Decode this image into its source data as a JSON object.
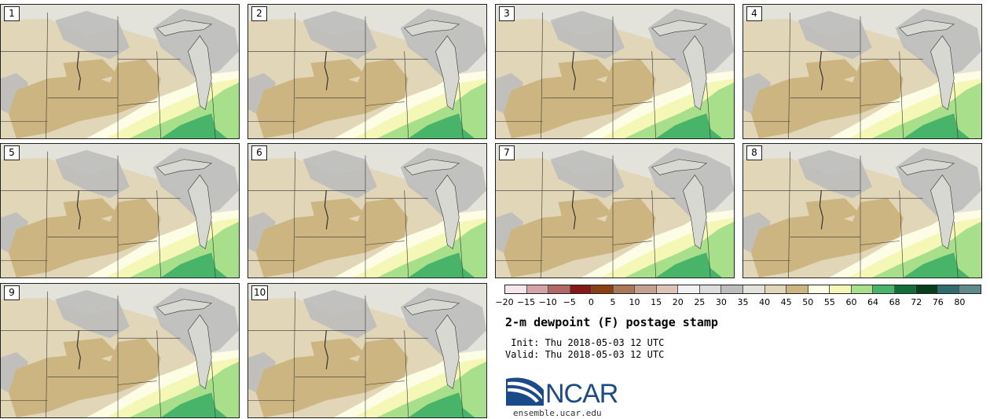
{
  "panels": [
    "1",
    "2",
    "3",
    "4",
    "5",
    "6",
    "7",
    "8",
    "9",
    "10"
  ],
  "colorbar": {
    "ticks": [
      "−20",
      "−15",
      "−10",
      "−5",
      "0",
      "5",
      "10",
      "15",
      "20",
      "25",
      "30",
      "35",
      "40",
      "45",
      "50",
      "55",
      "60",
      "64",
      "68",
      "72",
      "76",
      "80"
    ],
    "colors": [
      "#f5e6ec",
      "#d4a2a8",
      "#b36868",
      "#861818",
      "#8a4010",
      "#a87858",
      "#c4a090",
      "#dcc4b8",
      "#f1f1f1",
      "#dddddd",
      "#bdbdbd",
      "#e3e3dc",
      "#e2d6b8",
      "#cdb581",
      "#fdfde6",
      "#f5f7b7",
      "#a8df8a",
      "#48b46a",
      "#106e3a",
      "#083e1c",
      "#2e6c6e",
      "#5e8a8a"
    ]
  },
  "title": "2-m dewpoint (F) postage stamp",
  "init": " Init: Thu 2018-05-03 12 UTC",
  "valid": "Valid: Thu 2018-05-03 12 UTC",
  "logo": {
    "text": "NCAR",
    "url": "ensemble.ucar.edu",
    "color": "#1a4a8a"
  },
  "fill_colors": {
    "background": "#e3e3dc",
    "dry_tan": "#cdb581",
    "light_tan": "#e2d6b8",
    "gray": "#bdbdbd",
    "pale_yellow": "#fdfde6",
    "yellow": "#f5f7b7",
    "light_green": "#a8df8a",
    "green": "#48b46a"
  }
}
